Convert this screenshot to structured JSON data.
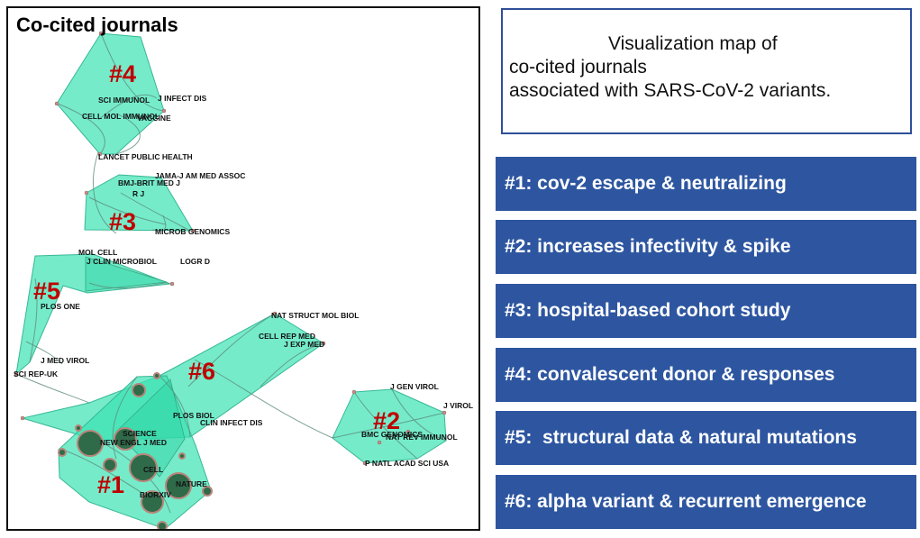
{
  "map": {
    "title": "Co-cited journals",
    "cluster_labels": [
      "#4",
      "#3",
      "#5",
      "#6",
      "#2",
      "#1"
    ],
    "journal_labels": [
      "SCI IMMUNOL",
      "J INFECT DIS",
      "CELL MOL IMMUNOL",
      "VACCINE",
      "LANCET PUBLIC HEALTH",
      "JAMA-J AM MED ASSOC",
      "BMJ-BRIT MED J",
      "R J",
      "MICROB GENOMICS",
      "MOL CELL",
      "J CLIN MICROBIOL",
      "LOGR D",
      "PLOS ONE",
      "J MED VIROL",
      "SCI REP-UK",
      "NAT STRUCT MOL BIOL",
      "CELL REP MED",
      "J EXP MED",
      "PLOS BIOL",
      "CLIN INFECT DIS",
      "J GEN VIROL",
      "J VIROL",
      "BMC GENOMICS",
      "NAT REV IMMUNOL",
      "P NATL ACAD SCI USA",
      "SCIENCE",
      "NEW ENGL J MED",
      "CELL",
      "NATURE",
      "BIORXIV"
    ]
  },
  "description": {
    "lines": [
      "Visualization map of",
      "co-cited journals",
      "associated with SARS-CoV-2 variants."
    ]
  },
  "legend": [
    "#1: cov-2 escape & neutralizing",
    "#2: increases infectivity & spike",
    "#3: hospital-based cohort study",
    "#4: convalescent donor & responses",
    "#5:  structural data & natural mutations",
    "#6: alpha variant & recurrent emergence"
  ],
  "colors": {
    "hull": "#3be3b3",
    "cluster_label": "#c00000",
    "legend_bg": "#2e56a0",
    "title_border": "#2e4f99"
  }
}
